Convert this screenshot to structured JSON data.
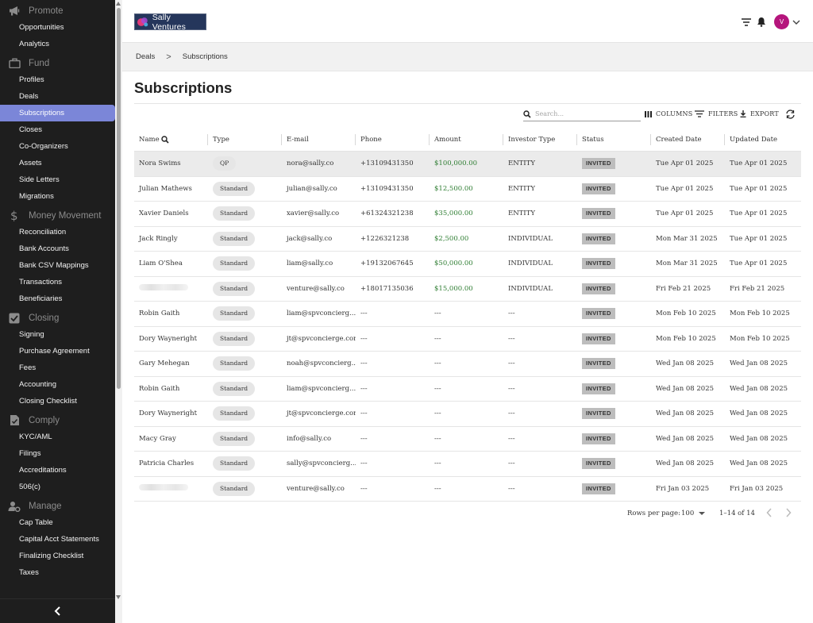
{
  "sidebar": {
    "sections": [
      {
        "label": "Promote",
        "icon": "megaphone-icon",
        "items": [
          "Opportunities",
          "Analytics"
        ]
      },
      {
        "label": "Fund",
        "icon": "briefcase-icon",
        "items": [
          "Profiles",
          "Deals",
          "Subscriptions",
          "Closes",
          "Co-Organizers",
          "Assets",
          "Side Letters",
          "Migrations"
        ]
      },
      {
        "label": "Money Movement",
        "icon": "dollar-icon",
        "items": [
          "Reconciliation",
          "Bank Accounts",
          "Bank CSV Mappings",
          "Transactions",
          "Beneficiaries"
        ]
      },
      {
        "label": "Closing",
        "icon": "checkbox-icon",
        "items": [
          "Signing",
          "Purchase Agreement",
          "Fees",
          "Accounting",
          "Closing Checklist"
        ]
      },
      {
        "label": "Comply",
        "icon": "document-check-icon",
        "items": [
          "KYC/AML",
          "Filings",
          "Accreditations",
          "506(c)"
        ]
      },
      {
        "label": "Manage",
        "icon": "person-gear-icon",
        "items": [
          "Cap Table",
          "Capital Acct Statements",
          "Finalizing Checklist",
          "Taxes"
        ]
      }
    ],
    "active_item": "Subscriptions"
  },
  "header": {
    "logo_text": "Sally Ventures",
    "avatar_initial": "V"
  },
  "breadcrumb": {
    "items": [
      "Deals",
      "Subscriptions"
    ],
    "separator": ">"
  },
  "page": {
    "title": "Subscriptions"
  },
  "toolbar": {
    "search_placeholder": "Search...",
    "columns_label": "COLUMNS",
    "filters_label": "FILTERS",
    "export_label": "EXPORT"
  },
  "table": {
    "columns": [
      "Name",
      "Type",
      "E-mail",
      "Phone",
      "Amount",
      "Investor Type",
      "Status",
      "Created Date",
      "Updated Date"
    ],
    "rows": [
      {
        "name": "Nora Swims",
        "type": "QP",
        "email": "nora@sally.co",
        "phone": "+13109431350",
        "amount": "$100,000.00",
        "investor_type": "ENTITY",
        "status": "INVITED",
        "created": "Tue Apr 01 2025",
        "updated": "Tue Apr 01 2025"
      },
      {
        "name": "Julian Mathews",
        "type": "Standard",
        "email": "julian@sally.co",
        "phone": "+13109431350",
        "amount": "$12,500.00",
        "investor_type": "ENTITY",
        "status": "INVITED",
        "created": "Tue Apr 01 2025",
        "updated": "Tue Apr 01 2025"
      },
      {
        "name": "Xavier Daniels",
        "type": "Standard",
        "email": "xavier@sally.co",
        "phone": "+61324321238",
        "amount": "$35,000.00",
        "investor_type": "ENTITY",
        "status": "INVITED",
        "created": "Tue Apr 01 2025",
        "updated": "Tue Apr 01 2025"
      },
      {
        "name": "Jack Ringly",
        "type": "Standard",
        "email": "jack@sally.co",
        "phone": "+1226321238",
        "amount": "$2,500.00",
        "investor_type": "INDIVIDUAL",
        "status": "INVITED",
        "created": "Mon Mar 31 2025",
        "updated": "Tue Apr 01 2025"
      },
      {
        "name": "Liam O'Shea",
        "type": "Standard",
        "email": "liam@sally.co",
        "phone": "+19132067645",
        "amount": "$50,000.00",
        "investor_type": "INDIVIDUAL",
        "status": "INVITED",
        "created": "Mon Mar 31 2025",
        "updated": "Tue Apr 01 2025"
      },
      {
        "name": "",
        "type": "Standard",
        "email": "venture@sally.co",
        "phone": "+18017135036",
        "amount": "$15,000.00",
        "investor_type": "INDIVIDUAL",
        "status": "INVITED",
        "created": "Fri Feb 21 2025",
        "updated": "Fri Feb 21 2025"
      },
      {
        "name": "Robin Gaith",
        "type": "Standard",
        "email": "liam@spvconcierg...",
        "phone": "---",
        "amount": "---",
        "investor_type": "---",
        "status": "INVITED",
        "created": "Mon Feb 10 2025",
        "updated": "Mon Feb 10 2025"
      },
      {
        "name": "Dory Wayneright",
        "type": "Standard",
        "email": "jt@spvconcierge.com",
        "phone": "---",
        "amount": "---",
        "investor_type": "---",
        "status": "INVITED",
        "created": "Mon Feb 10 2025",
        "updated": "Mon Feb 10 2025"
      },
      {
        "name": "Gary Mehegan",
        "type": "Standard",
        "email": "noah@spvconcierg...",
        "phone": "---",
        "amount": "---",
        "investor_type": "---",
        "status": "INVITED",
        "created": "Wed Jan 08 2025",
        "updated": "Wed Jan 08 2025"
      },
      {
        "name": "Robin Gaith",
        "type": "Standard",
        "email": "liam@spvconcierg...",
        "phone": "---",
        "amount": "---",
        "investor_type": "---",
        "status": "INVITED",
        "created": "Wed Jan 08 2025",
        "updated": "Wed Jan 08 2025"
      },
      {
        "name": "Dory Wayneright",
        "type": "Standard",
        "email": "jt@spvconcierge.com",
        "phone": "---",
        "amount": "---",
        "investor_type": "---",
        "status": "INVITED",
        "created": "Wed Jan 08 2025",
        "updated": "Wed Jan 08 2025"
      },
      {
        "name": "Macy Gray",
        "type": "Standard",
        "email": "info@sally.co",
        "phone": "---",
        "amount": "---",
        "investor_type": "---",
        "status": "INVITED",
        "created": "Wed Jan 08 2025",
        "updated": "Wed Jan 08 2025"
      },
      {
        "name": "Patricia Charles",
        "type": "Standard",
        "email": "sally@spvconcierg...",
        "phone": "---",
        "amount": "---",
        "investor_type": "---",
        "status": "INVITED",
        "created": "Wed Jan 08 2025",
        "updated": "Wed Jan 08 2025"
      },
      {
        "name": "",
        "type": "Standard",
        "email": "venture@sally.co",
        "phone": "---",
        "amount": "---",
        "investor_type": "---",
        "status": "INVITED",
        "created": "Fri Jan 03 2025",
        "updated": "Fri Jan 03 2025"
      }
    ]
  },
  "pagination": {
    "rows_per_page_label": "Rows per page:",
    "rows_per_page_value": "100",
    "range_label": "1–14 of 14"
  },
  "colors": {
    "sidebar_bg": "#1e1e1e",
    "active_item": "#7b86d8",
    "amount_green": "#2e7d32",
    "avatar": "#b5157c",
    "logo_bg": "#25365b"
  }
}
